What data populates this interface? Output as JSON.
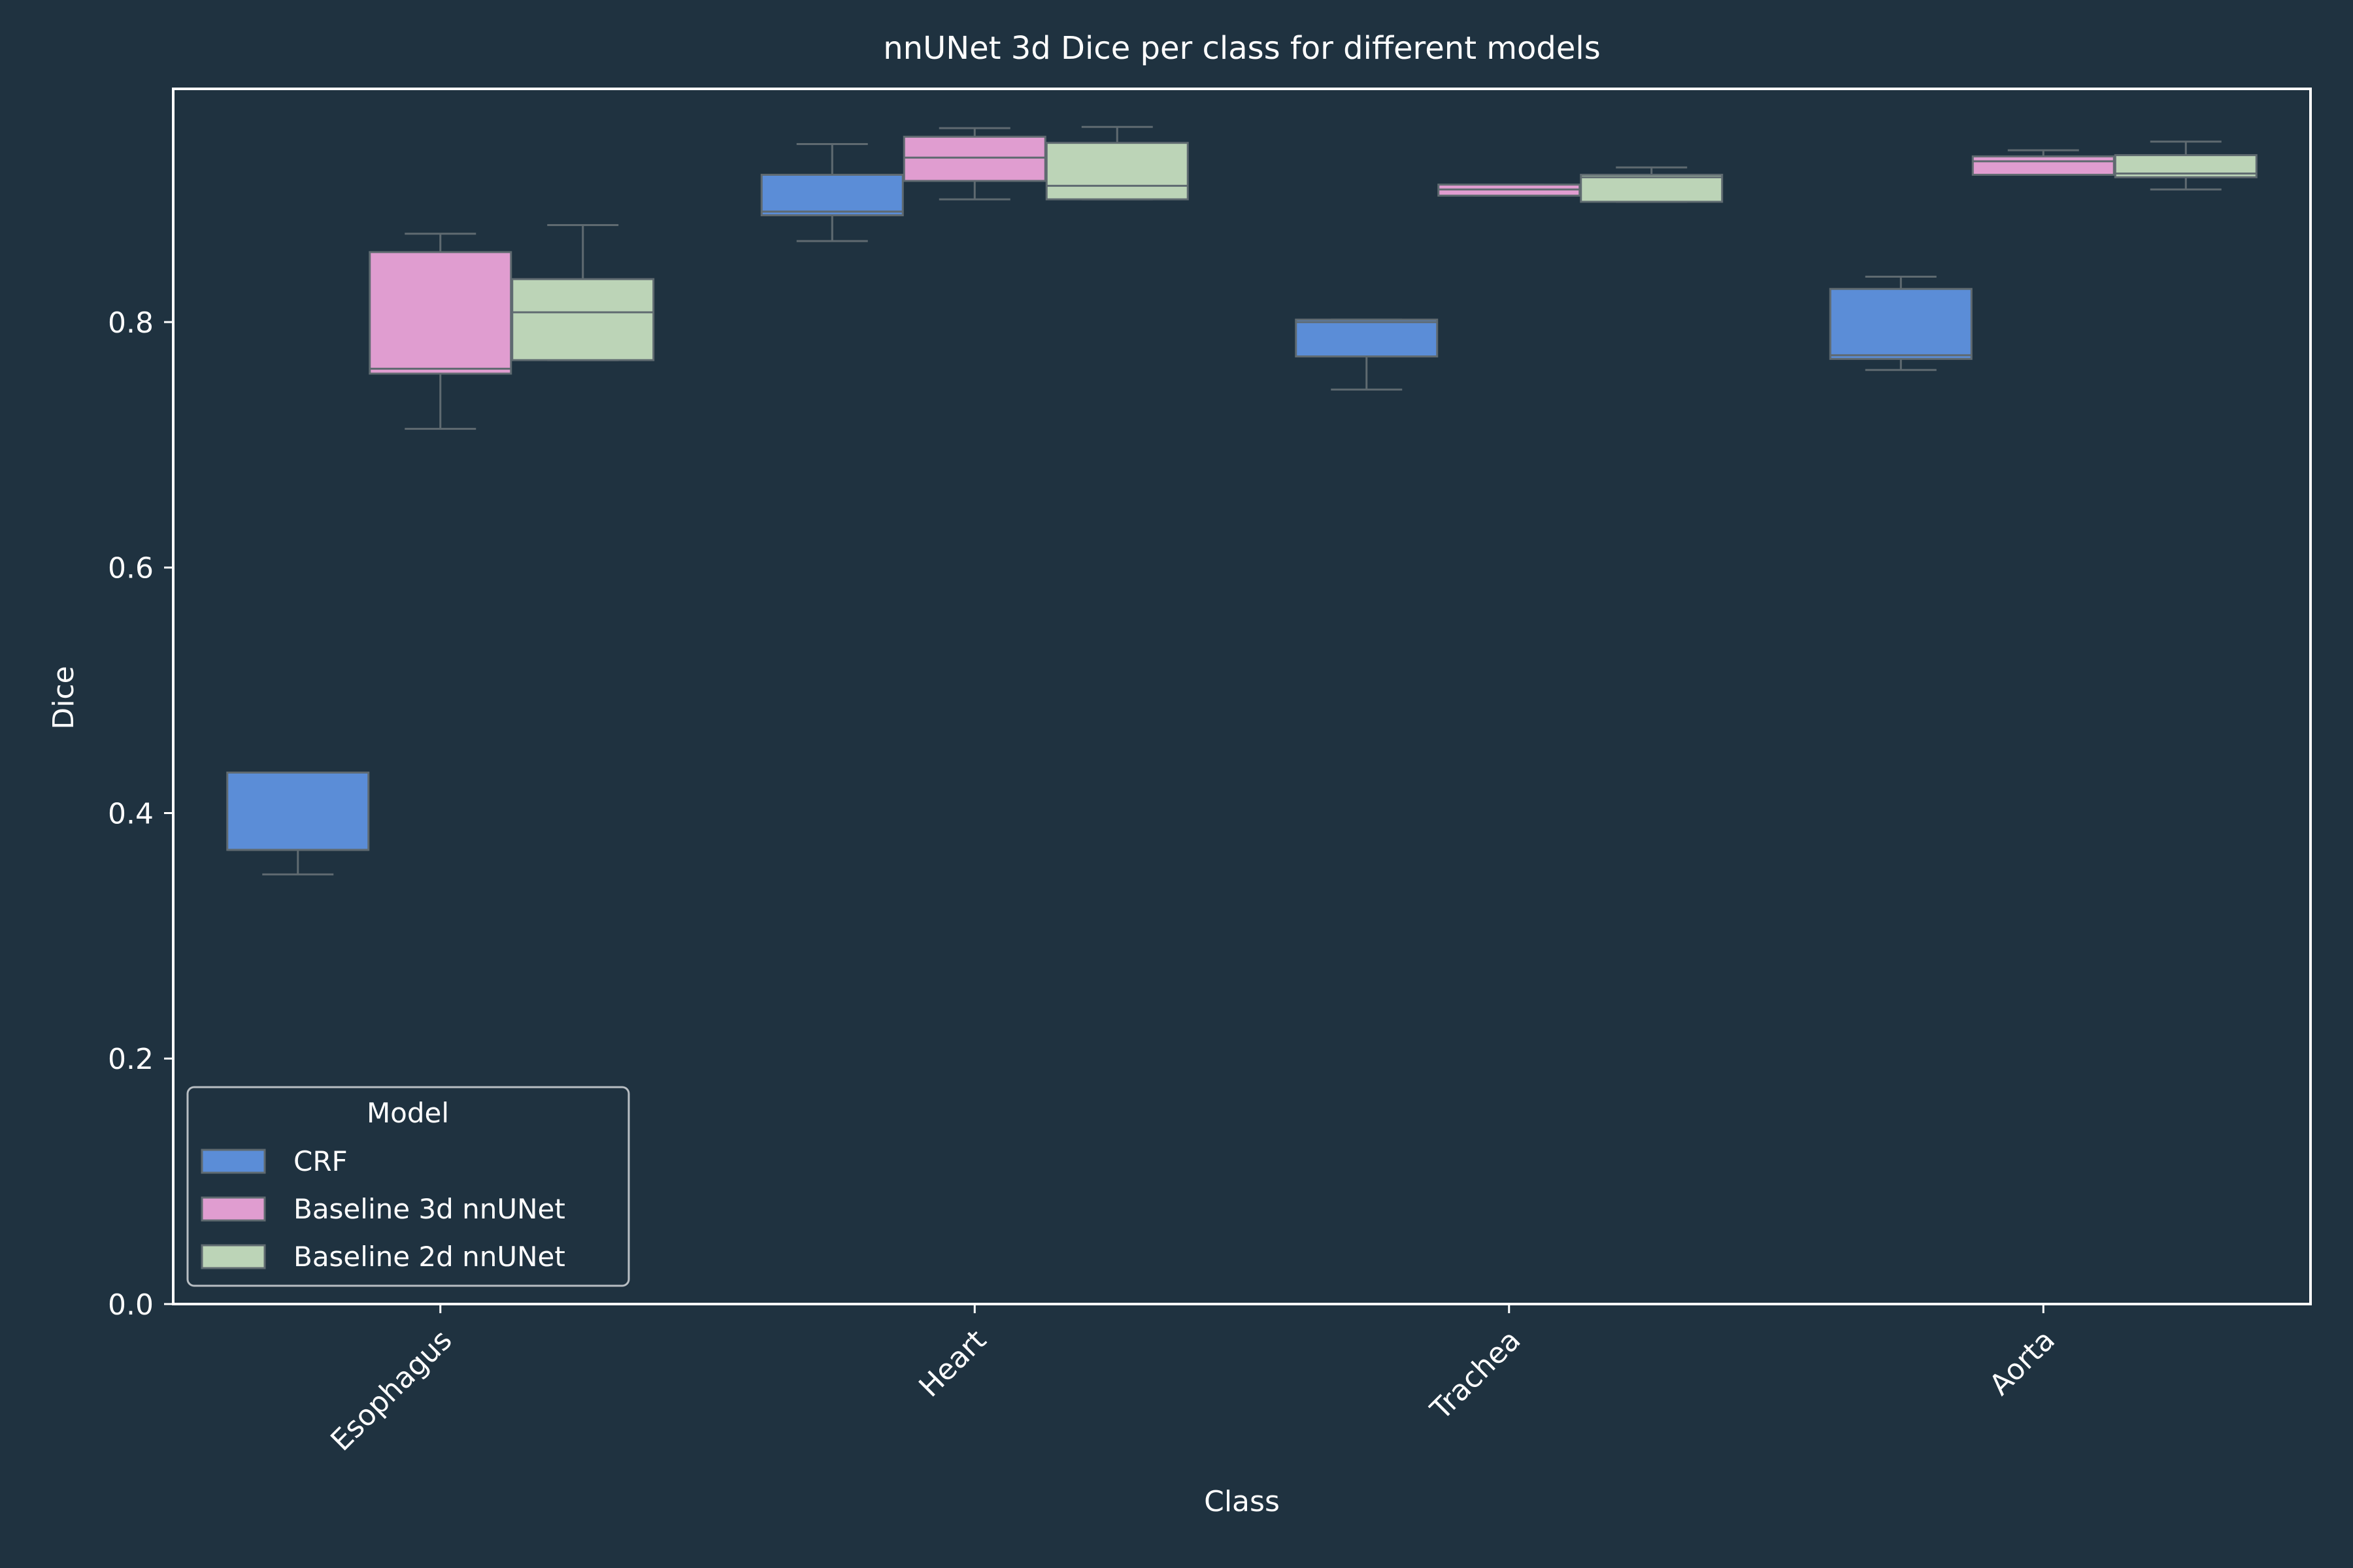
{
  "colors": {
    "background": "#1f3240",
    "text": "#ffffff",
    "axis": "#ffffff",
    "whisker": "#5f6a70",
    "box_edge": "#5f6a70",
    "legend_border": "#b8bec3"
  },
  "chart_data": {
    "type": "box",
    "title": "nnUNet 3d Dice per class for different models",
    "xlabel": "Class",
    "ylabel": "Dice",
    "categories": [
      "Esophagus",
      "Heart",
      "Trachea",
      "Aorta"
    ],
    "ylim": [
      0,
      0.99
    ],
    "yticks": [
      {
        "value": 0.0,
        "label": "0.0"
      },
      {
        "value": 0.2,
        "label": "0.2"
      },
      {
        "value": 0.4,
        "label": "0.4"
      },
      {
        "value": 0.6,
        "label": "0.6"
      },
      {
        "value": 0.8,
        "label": "0.8"
      }
    ],
    "grid": false,
    "legend": {
      "title": "Model",
      "position": "lower-left"
    },
    "series": [
      {
        "name": "CRF",
        "color": "#5b8dd7",
        "boxes": [
          {
            "whislo": 0.35,
            "q1": 0.37,
            "med": 0.37,
            "q3": 0.433,
            "whishi": 0.433
          },
          {
            "whislo": 0.866,
            "q1": 0.887,
            "med": 0.89,
            "q3": 0.92,
            "whishi": 0.945
          },
          {
            "whislo": 0.745,
            "q1": 0.772,
            "med": 0.8,
            "q3": 0.802,
            "whishi": 0.802
          },
          {
            "whislo": 0.761,
            "q1": 0.77,
            "med": 0.773,
            "q3": 0.827,
            "whishi": 0.837
          }
        ]
      },
      {
        "name": "Baseline 3d nnUNet",
        "color": "#e09dd0",
        "boxes": [
          {
            "whislo": 0.713,
            "q1": 0.758,
            "med": 0.762,
            "q3": 0.857,
            "whishi": 0.872
          },
          {
            "whislo": 0.9,
            "q1": 0.915,
            "med": 0.934,
            "q3": 0.951,
            "whishi": 0.958
          },
          {
            "whislo": 0.903,
            "q1": 0.903,
            "med": 0.908,
            "q3": 0.912,
            "whishi": 0.912
          },
          {
            "whislo": 0.92,
            "q1": 0.92,
            "med": 0.931,
            "q3": 0.935,
            "whishi": 0.94
          }
        ]
      },
      {
        "name": "Baseline 2d nnUNet",
        "color": "#bcd4b7",
        "boxes": [
          {
            "whislo": 0.769,
            "q1": 0.769,
            "med": 0.808,
            "q3": 0.835,
            "whishi": 0.879
          },
          {
            "whislo": 0.9,
            "q1": 0.9,
            "med": 0.911,
            "q3": 0.946,
            "whishi": 0.959
          },
          {
            "whislo": 0.898,
            "q1": 0.898,
            "med": 0.918,
            "q3": 0.92,
            "whishi": 0.926
          },
          {
            "whislo": 0.908,
            "q1": 0.918,
            "med": 0.921,
            "q3": 0.936,
            "whishi": 0.947
          }
        ]
      }
    ]
  }
}
